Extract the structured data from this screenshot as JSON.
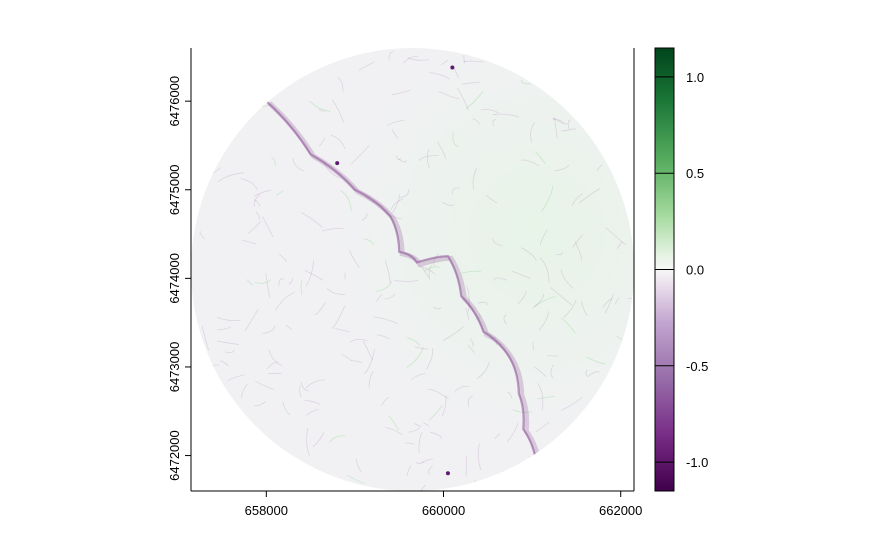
{
  "chart_data": {
    "type": "heatmap",
    "title": "",
    "xlabel": "",
    "ylabel": "",
    "x_ticks": [
      {
        "value": 658000,
        "label": "658000"
      },
      {
        "value": 660000,
        "label": "660000"
      },
      {
        "value": 662000,
        "label": "662000"
      }
    ],
    "y_ticks": [
      {
        "value": 6472000,
        "label": "6472000"
      },
      {
        "value": 6473000,
        "label": "6473000"
      },
      {
        "value": 6474000,
        "label": "6474000"
      },
      {
        "value": 6475000,
        "label": "6475000"
      },
      {
        "value": 6476000,
        "label": "6476000"
      }
    ],
    "xlim": [
      657150,
      662150
    ],
    "ylim": [
      6471600,
      6476600
    ],
    "extent_shape": "circle",
    "extent_center": [
      659650,
      6474100
    ],
    "extent_radius": 2500,
    "colorbar": {
      "palette": "purple-white-green",
      "low_color": "#40004b",
      "mid_color": "#f7f7f7",
      "high_color": "#00441b",
      "range": [
        -1.15,
        1.15
      ],
      "ticks": [
        {
          "value": 1.0,
          "label": "1.0"
        },
        {
          "value": 0.5,
          "label": "0.5"
        },
        {
          "value": 0.0,
          "label": "0.0"
        },
        {
          "value": -0.5,
          "label": "-0.5"
        },
        {
          "value": -1.0,
          "label": "-1.0"
        }
      ]
    },
    "colors": {
      "fill_base": "#f1f1f3",
      "negative_line": "#8a4f95",
      "positive_line": "#7fd37f"
    }
  }
}
